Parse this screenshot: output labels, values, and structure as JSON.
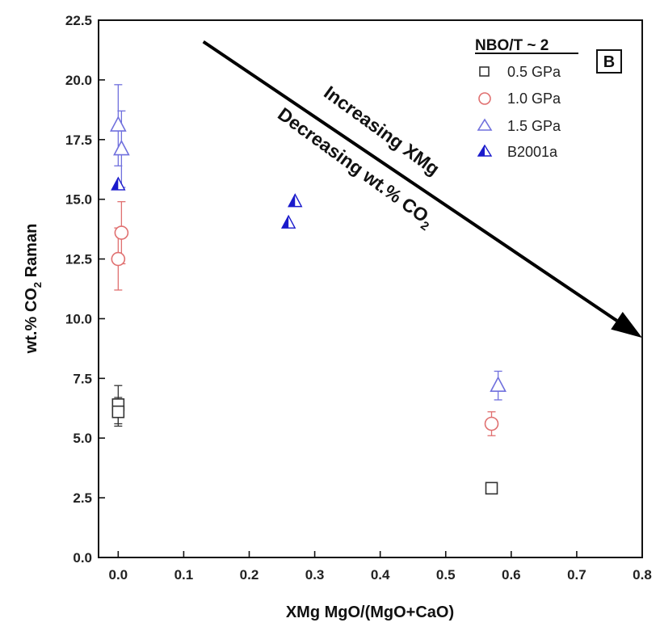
{
  "chart_data": {
    "type": "scatter",
    "xlabel": "XMg MgO/(MgO+CaO)",
    "ylabel": "wt.% CO",
    "ylabel_sub": "2",
    "ylabel_suffix": " Raman",
    "xlim": [
      -0.03,
      0.8
    ],
    "ylim": [
      0.0,
      22.5
    ],
    "x_ticks": [
      "0.0",
      "0.1",
      "0.2",
      "0.3",
      "0.4",
      "0.5",
      "0.6",
      "0.7",
      "0.8"
    ],
    "x_tick_values": [
      0.0,
      0.1,
      0.2,
      0.3,
      0.4,
      0.5,
      0.6,
      0.7,
      0.8
    ],
    "y_ticks": [
      "0.0",
      "2.5",
      "5.0",
      "7.5",
      "10.0",
      "12.5",
      "15.0",
      "17.5",
      "20.0",
      "22.5"
    ],
    "y_tick_values": [
      0.0,
      2.5,
      5.0,
      7.5,
      10.0,
      12.5,
      15.0,
      17.5,
      20.0,
      22.5
    ],
    "panel_label": "B",
    "legend": {
      "title": "NBO/T ~ 2",
      "position": "top-right",
      "entries": [
        "0.5 GPa",
        "1.0 GPa",
        "1.5 GPa",
        "B2001a"
      ]
    },
    "series": [
      {
        "name": "0.5 GPa",
        "marker": "open-square",
        "color": "#333333",
        "points": [
          {
            "x": 0.0,
            "y": 6.4,
            "err": 0.8
          },
          {
            "x": 0.0,
            "y": 6.1,
            "err": 0.6
          },
          {
            "x": 0.57,
            "y": 2.9,
            "err": 0
          }
        ]
      },
      {
        "name": "1.0 GPa",
        "marker": "open-circle",
        "color": "#e07070",
        "points": [
          {
            "x": 0.0,
            "y": 12.5,
            "err": 1.3
          },
          {
            "x": 0.005,
            "y": 13.6,
            "err": 1.3
          },
          {
            "x": 0.57,
            "y": 5.6,
            "err": 0.5
          }
        ]
      },
      {
        "name": "1.5 GPa",
        "marker": "open-triangle",
        "color": "#7070dd",
        "points": [
          {
            "x": 0.0,
            "y": 18.1,
            "err": 1.7
          },
          {
            "x": 0.005,
            "y": 17.1,
            "err": 1.6
          },
          {
            "x": 0.58,
            "y": 7.2,
            "err": 0.6
          }
        ]
      },
      {
        "name": "B2001a",
        "marker": "half-filled-triangle",
        "color": "#1a1acc",
        "points": [
          {
            "x": 0.0,
            "y": 15.6,
            "err": 0
          },
          {
            "x": 0.26,
            "y": 14.0,
            "err": 0
          },
          {
            "x": 0.27,
            "y": 14.9,
            "err": 0
          }
        ]
      }
    ],
    "annotations": {
      "line1": "Increasing XMg",
      "line2": "Decreasing wt.% CO",
      "line2_sub": "2",
      "arrow_from": {
        "x": 0.13,
        "y": 21.6
      },
      "arrow_to": {
        "x": 0.8,
        "y": 9.2
      }
    }
  }
}
